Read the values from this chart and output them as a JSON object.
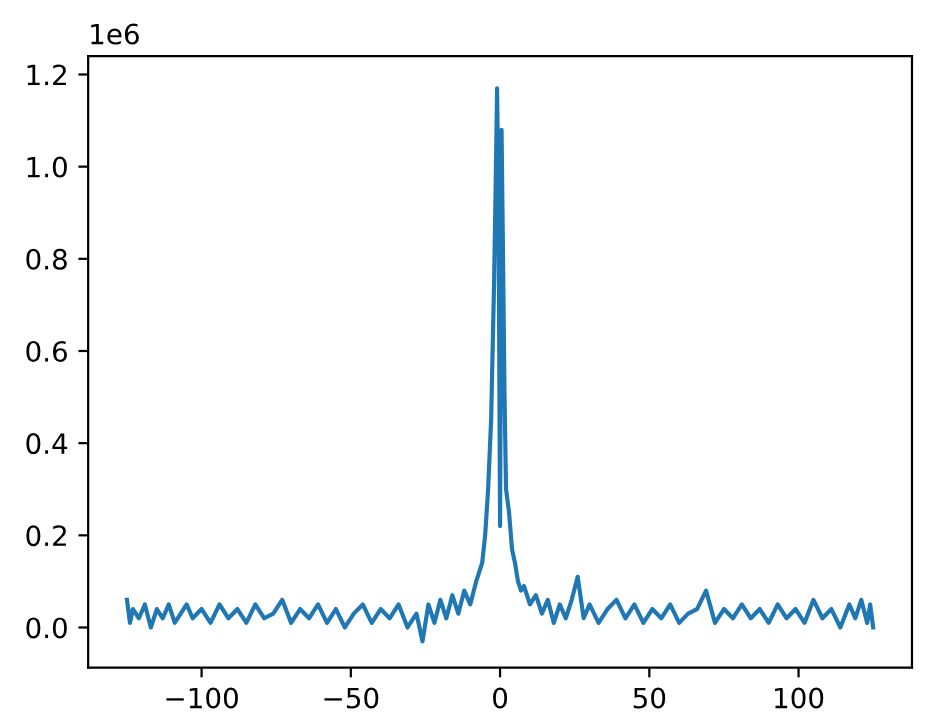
{
  "chart_data": {
    "type": "line",
    "annotations": [
      "1e6"
    ],
    "xlim": [
      -138,
      138
    ],
    "ylim": [
      -0.087,
      1.24
    ],
    "xticks": [
      {
        "value": -100,
        "label": "−100"
      },
      {
        "value": -50,
        "label": "−50"
      },
      0,
      50,
      100
    ],
    "yticks": [
      {
        "value": 0,
        "label": "0.0"
      },
      {
        "value": 0.2,
        "label": "0.2"
      },
      {
        "value": 0.4,
        "label": "0.4"
      },
      {
        "value": 0.6,
        "label": "0.6"
      },
      {
        "value": 0.8,
        "label": "0.8"
      },
      {
        "value": 1.0,
        "label": "1.0"
      },
      {
        "value": 1.2,
        "label": "1.2"
      }
    ],
    "grid": false,
    "legend": false,
    "series": [
      {
        "color": "#1f77b4",
        "x": [
          -125,
          -124,
          -123,
          -121,
          -119,
          -117,
          -115,
          -113,
          -111,
          -109,
          -107,
          -105,
          -103,
          -100,
          -97,
          -94,
          -91,
          -88,
          -85,
          -82,
          -79,
          -76,
          -73,
          -70,
          -67,
          -64,
          -61,
          -58,
          -55,
          -52,
          -49,
          -46,
          -43,
          -40,
          -37,
          -34,
          -31,
          -28,
          -26,
          -24,
          -22,
          -20,
          -18,
          -16,
          -14,
          -12,
          -10,
          -8,
          -6,
          -5,
          -4,
          -3,
          -2,
          -1.5,
          -1,
          -0.5,
          0,
          0.5,
          1,
          1.5,
          2,
          3,
          4,
          5,
          6,
          7,
          8,
          10,
          12,
          14,
          16,
          18,
          20,
          22,
          24,
          26,
          28,
          30,
          33,
          36,
          39,
          42,
          45,
          48,
          51,
          54,
          57,
          60,
          63,
          66,
          69,
          72,
          75,
          78,
          81,
          84,
          87,
          90,
          93,
          96,
          99,
          102,
          105,
          108,
          111,
          114,
          117,
          119,
          121,
          123,
          124,
          125
        ],
        "values": [
          0.06,
          0.01,
          0.04,
          0.02,
          0.05,
          0.0,
          0.04,
          0.02,
          0.05,
          0.01,
          0.03,
          0.05,
          0.02,
          0.04,
          0.01,
          0.05,
          0.02,
          0.04,
          0.01,
          0.05,
          0.02,
          0.03,
          0.06,
          0.01,
          0.04,
          0.02,
          0.05,
          0.01,
          0.04,
          0.0,
          0.03,
          0.05,
          0.01,
          0.04,
          0.02,
          0.05,
          0.0,
          0.03,
          -0.03,
          0.05,
          0.01,
          0.06,
          0.02,
          0.07,
          0.03,
          0.08,
          0.05,
          0.1,
          0.14,
          0.2,
          0.3,
          0.45,
          0.75,
          0.95,
          1.17,
          0.9,
          0.22,
          1.08,
          0.8,
          0.5,
          0.3,
          0.25,
          0.17,
          0.14,
          0.1,
          0.08,
          0.09,
          0.05,
          0.07,
          0.03,
          0.06,
          0.01,
          0.05,
          0.02,
          0.06,
          0.11,
          0.02,
          0.05,
          0.01,
          0.04,
          0.06,
          0.02,
          0.05,
          0.01,
          0.04,
          0.02,
          0.05,
          0.01,
          0.03,
          0.04,
          0.08,
          0.01,
          0.04,
          0.02,
          0.05,
          0.02,
          0.04,
          0.01,
          0.05,
          0.02,
          0.04,
          0.01,
          0.06,
          0.02,
          0.04,
          0.0,
          0.05,
          0.02,
          0.06,
          0.01,
          0.05,
          0.0
        ]
      }
    ]
  }
}
